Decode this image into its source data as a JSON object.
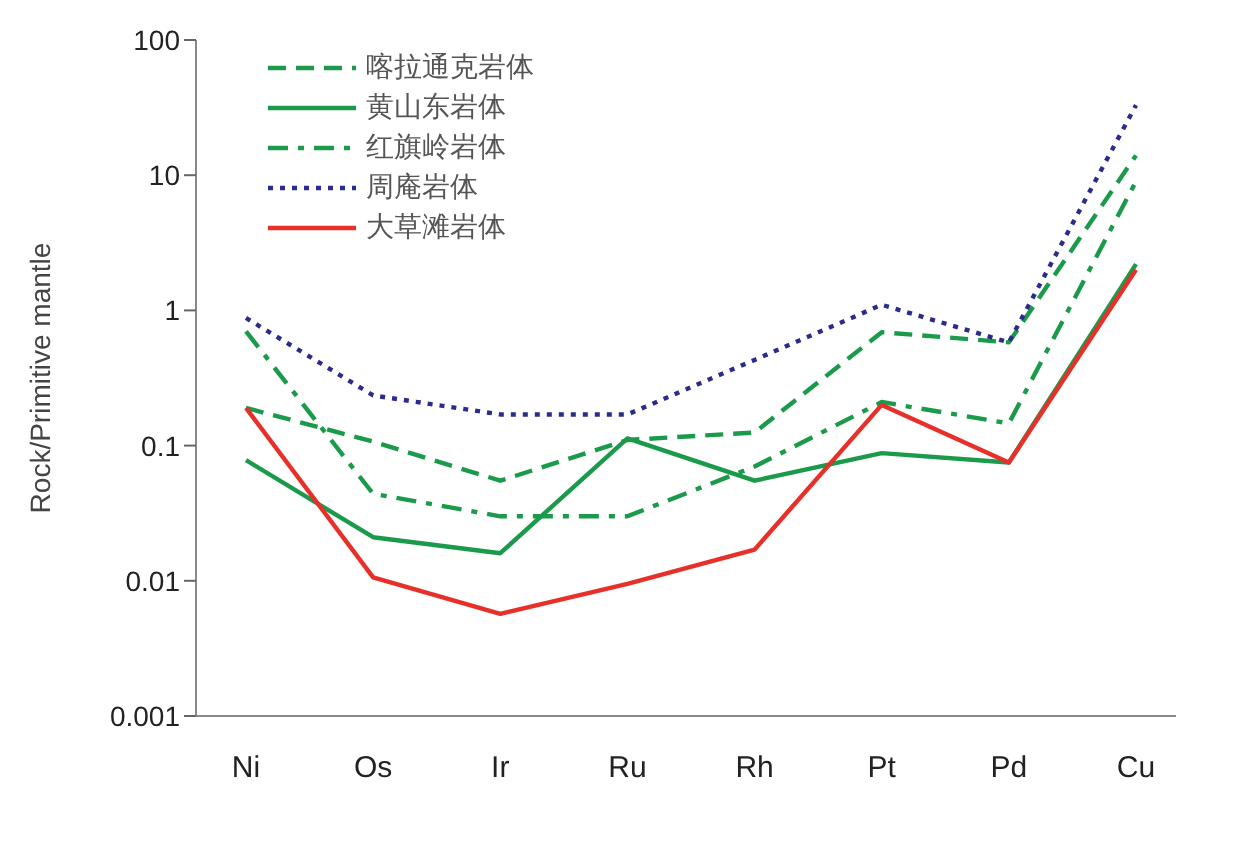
{
  "chart_data": {
    "type": "line",
    "ylabel": "Rock/Primitive mantle",
    "categories": [
      "Ni",
      "Os",
      "Ir",
      "Ru",
      "Rh",
      "Pt",
      "Pd",
      "Cu"
    ],
    "log": "y",
    "ylim": [
      0.001,
      100
    ],
    "yticks": [
      0.001,
      0.01,
      0.1,
      1,
      10,
      100
    ],
    "grid": false,
    "legend": "top left",
    "marker": "none",
    "series": [
      {
        "name": "喀拉通克岩体",
        "color": "#1a9a4a",
        "line_style": "dashed",
        "values": [
          0.19,
          0.107,
          0.055,
          0.11,
          0.125,
          0.69,
          0.58,
          14
        ]
      },
      {
        "name": "黄山东岩体",
        "color": "#1a9a4a",
        "line_style": "solid",
        "values": [
          0.078,
          0.021,
          0.016,
          0.113,
          0.055,
          0.088,
          0.075,
          2.2
        ]
      },
      {
        "name": "红旗岭岩体",
        "color": "#1a9a4a",
        "line_style": "dashdot",
        "values": [
          0.7,
          0.044,
          0.03,
          0.03,
          0.07,
          0.21,
          0.146,
          9
        ]
      },
      {
        "name": "周庵岩体",
        "color": "#2b2b8c",
        "line_style": "dotted",
        "values": [
          0.88,
          0.235,
          0.17,
          0.17,
          0.43,
          1.1,
          0.58,
          33
        ]
      },
      {
        "name": "大草滩岩体",
        "color": "#e8302a",
        "line_style": "solid",
        "values": [
          0.19,
          0.0106,
          0.0057,
          0.0095,
          0.017,
          0.2,
          0.075,
          2
        ]
      }
    ]
  }
}
